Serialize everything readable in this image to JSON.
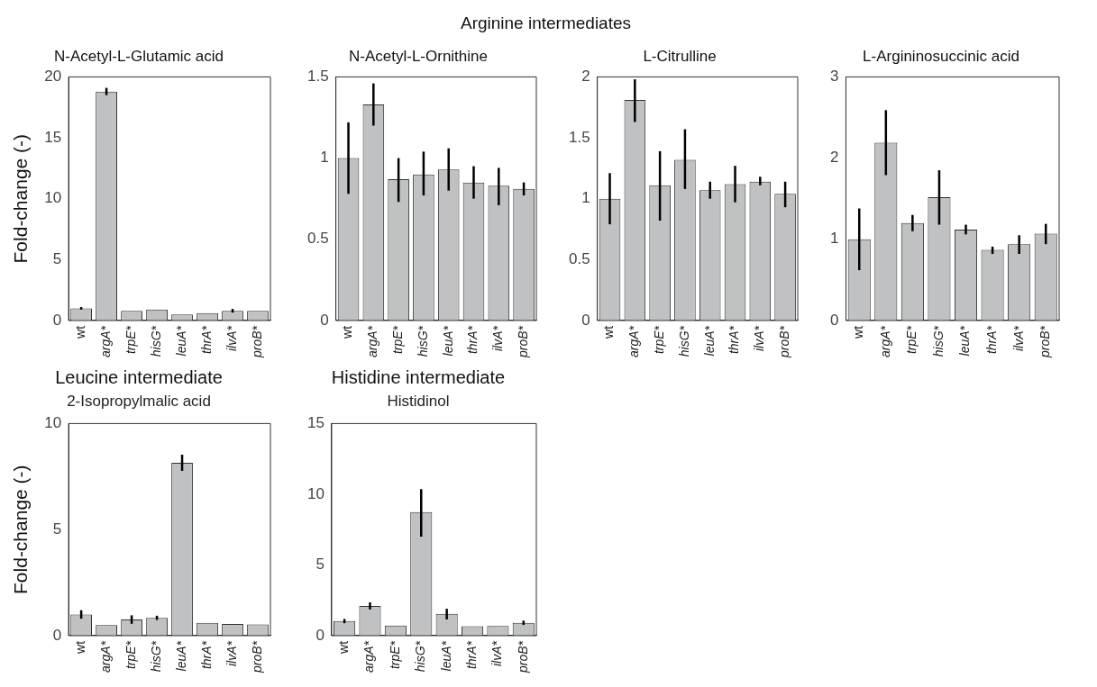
{
  "chart_data": [
    {
      "type": "bar",
      "title": "N-Acetyl-L-Glutamic acid",
      "ylabel": "Fold-change (-)",
      "annotations": [
        "Arginine intermediates"
      ],
      "categories": [
        "wt",
        "argA*",
        "trpE*",
        "hisG*",
        "leuA*",
        "thrA*",
        "ilvA*",
        "proB*"
      ],
      "values": [
        1.0,
        18.8,
        0.8,
        0.9,
        0.5,
        0.6,
        0.8,
        0.8
      ],
      "errors": [
        0.1,
        0.3,
        null,
        null,
        null,
        null,
        0.15,
        null
      ],
      "color": "#bfc1c3",
      "ylim": [
        0,
        20
      ],
      "yticks": [
        0,
        5,
        10,
        15,
        20
      ],
      "grid": false
    },
    {
      "type": "bar",
      "title": "N-Acetyl-L-Ornithine",
      "categories": [
        "wt",
        "argA*",
        "trpE*",
        "hisG*",
        "leuA*",
        "thrA*",
        "ilvA*",
        "proB*"
      ],
      "values": [
        1.0,
        1.33,
        0.87,
        0.9,
        0.93,
        0.85,
        0.83,
        0.81
      ],
      "errors": [
        [
          0.78,
          1.22
        ],
        [
          1.2,
          1.46
        ],
        [
          0.73,
          1.0
        ],
        [
          0.77,
          1.04
        ],
        [
          0.8,
          1.06
        ],
        [
          0.75,
          0.95
        ],
        [
          0.71,
          0.94
        ],
        [
          0.77,
          0.85
        ]
      ],
      "color": "#bfc1c3",
      "ylim": [
        0,
        1.5
      ],
      "yticks": [
        0,
        0.5,
        1,
        1.5
      ],
      "grid": false
    },
    {
      "type": "bar",
      "title": "L-Citrulline",
      "categories": [
        "wt",
        "argA*",
        "trpE*",
        "hisG*",
        "leuA*",
        "thrA*",
        "ilvA*",
        "proB*"
      ],
      "values": [
        1.0,
        1.81,
        1.11,
        1.32,
        1.07,
        1.12,
        1.14,
        1.04
      ],
      "errors": [
        [
          0.79,
          1.21
        ],
        [
          1.63,
          1.98
        ],
        [
          0.82,
          1.39
        ],
        [
          1.08,
          1.57
        ],
        [
          1.0,
          1.14
        ],
        [
          0.97,
          1.27
        ],
        [
          1.11,
          1.18
        ],
        [
          0.93,
          1.14
        ]
      ],
      "color": "#bfc1c3",
      "ylim": [
        0,
        2
      ],
      "yticks": [
        0,
        0.5,
        1,
        1.5,
        2
      ],
      "grid": false
    },
    {
      "type": "bar",
      "title": "L-Argininosuccinic acid",
      "categories": [
        "wt",
        "argA*",
        "trpE*",
        "hisG*",
        "leuA*",
        "thrA*",
        "ilvA*",
        "proB*"
      ],
      "values": [
        1.0,
        2.19,
        1.2,
        1.52,
        1.12,
        0.87,
        0.94,
        1.07
      ],
      "errors": [
        [
          0.62,
          1.38
        ],
        [
          1.79,
          2.59
        ],
        [
          1.1,
          1.3
        ],
        [
          1.18,
          1.85
        ],
        [
          1.06,
          1.18
        ],
        [
          0.82,
          0.91
        ],
        [
          0.82,
          1.05
        ],
        [
          0.94,
          1.19
        ]
      ],
      "color": "#bfc1c3",
      "ylim": [
        0,
        3
      ],
      "yticks": [
        0,
        1,
        2,
        3
      ],
      "grid": false
    },
    {
      "type": "bar",
      "title": "Leucine intermediate",
      "subtitle": "2-Isopropylmalic acid",
      "ylabel": "Fold-change (-)",
      "categories": [
        "wt",
        "argA*",
        "trpE*",
        "hisG*",
        "leuA*",
        "thrA*",
        "ilvA*",
        "proB*"
      ],
      "values": [
        1.0,
        0.5,
        0.76,
        0.84,
        8.15,
        0.6,
        0.55,
        0.53
      ],
      "errors": [
        0.2,
        null,
        0.2,
        0.1,
        [
          7.77,
          8.53
        ],
        null,
        null,
        null
      ],
      "color": "#bfc1c3",
      "ylim": [
        0,
        10
      ],
      "yticks": [
        0,
        5,
        10
      ],
      "grid": false
    },
    {
      "type": "bar",
      "title": "Histidine intermediate",
      "subtitle": "Histidinol",
      "categories": [
        "wt",
        "argA*",
        "trpE*",
        "hisG*",
        "leuA*",
        "thrA*",
        "ilvA*",
        "proB*"
      ],
      "values": [
        1.03,
        2.1,
        0.72,
        8.73,
        1.55,
        0.67,
        0.69,
        0.91
      ],
      "errors": [
        0.15,
        [
          1.85,
          2.35
        ],
        null,
        [
          7.0,
          10.36
        ],
        [
          1.15,
          1.9
        ],
        null,
        null,
        0.15
      ],
      "color": "#bfc1c3",
      "ylim": [
        0,
        15
      ],
      "yticks": [
        0,
        5,
        10,
        15
      ],
      "grid": false
    }
  ]
}
